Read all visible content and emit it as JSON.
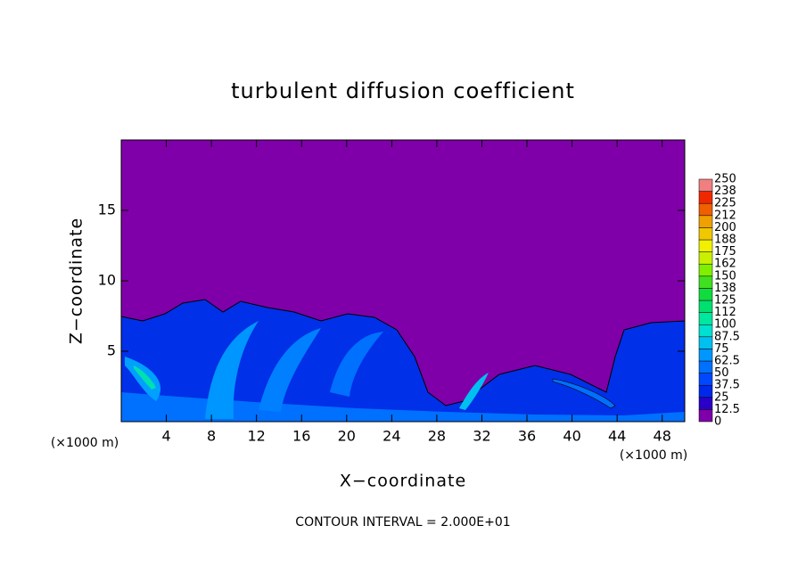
{
  "chart_data": {
    "type": "contour",
    "title": "turbulent diffusion coefficient",
    "x_label": "X−coordinate",
    "y_label": "Z−coordinate",
    "x_unit_left": "(×1000 m)",
    "x_unit_right": "(×1000 m)",
    "annotation": "CONTOUR INTERVAL = 2.000E+01",
    "xlim": [
      0,
      50
    ],
    "xticks": [
      4,
      8,
      12,
      16,
      20,
      24,
      28,
      32,
      36,
      40,
      44,
      48
    ],
    "ylim": [
      0,
      20
    ],
    "yticks": [
      5,
      10,
      15
    ],
    "colorbar": {
      "levels": [
        0,
        12.5,
        25,
        37.5,
        50,
        62.5,
        75,
        87.5,
        100,
        {
          "value": 112.5,
          "label": "112"
        },
        125,
        {
          "value": 137.5,
          "label": "138"
        },
        150,
        {
          "value": 162.5,
          "label": "162"
        },
        175,
        {
          "value": 187.5,
          "label": "188"
        },
        200,
        {
          "value": 212.5,
          "label": "212"
        },
        225,
        {
          "value": 237.5,
          "label": "238"
        },
        250
      ],
      "colors": [
        "#7f00a8",
        "#2a00c8",
        "#0028e8",
        "#0048ff",
        "#0070ff",
        "#0096ff",
        "#00c0f0",
        "#00e0d0",
        "#00e8a0",
        "#00e070",
        "#10dc40",
        "#40e020",
        "#80f000",
        "#c8f000",
        "#f0f000",
        "#f0c800",
        "#f0a000",
        "#f06000",
        "#f02800",
        "#f08080"
      ]
    }
  }
}
